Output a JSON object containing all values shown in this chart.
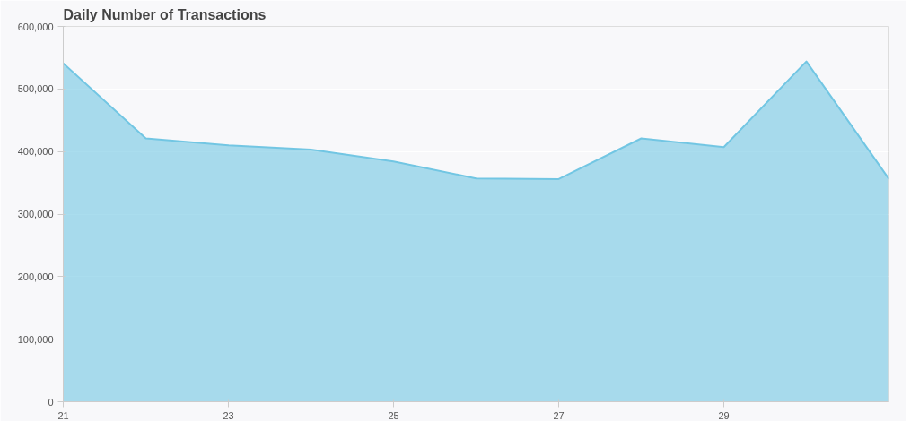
{
  "chart_data": {
    "type": "area",
    "title": "Daily Number of Transactions",
    "x": [
      21,
      22,
      23,
      24,
      25,
      26,
      27,
      28,
      29,
      30,
      31
    ],
    "series": [
      {
        "color": "#72c6e3",
        "values": [
          541000,
          421000,
          410000,
          403000,
          384000,
          357000,
          356000,
          421000,
          407000,
          544000,
          356000
        ]
      }
    ],
    "xlim": [
      21,
      31
    ],
    "xticks": [
      21,
      23,
      25,
      27,
      29
    ],
    "ylim": [
      0,
      600000
    ],
    "yticks": [
      0,
      {
        "value": 100000,
        "label": "100,000"
      },
      {
        "value": 200000,
        "label": "200,000"
      },
      {
        "value": 300000,
        "label": "300,000"
      },
      {
        "value": 400000,
        "label": "400,000"
      },
      {
        "value": 500000,
        "label": "500,000"
      },
      {
        "value": 600000,
        "label": "600,000"
      }
    ],
    "grid": "y"
  }
}
